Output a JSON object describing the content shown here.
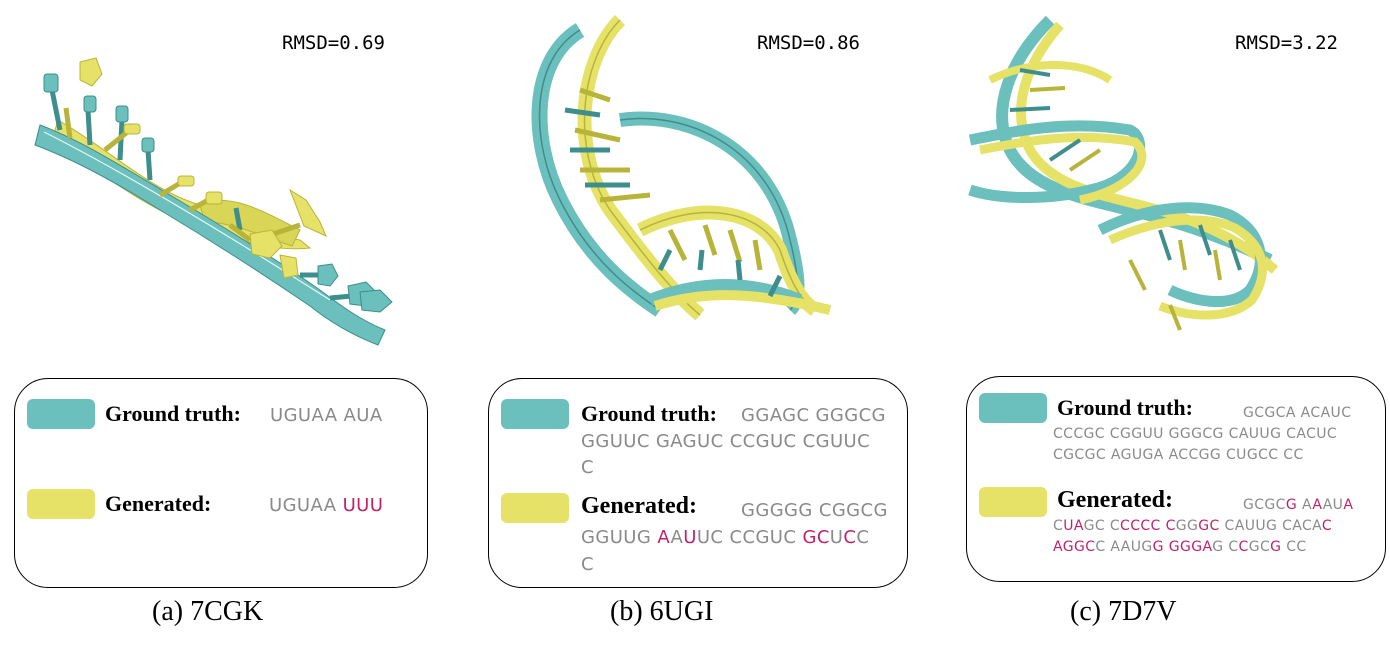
{
  "colors": {
    "ground_truth": "#6bbfbd",
    "generated": "#e5e267",
    "mutation": "#c1226a",
    "sequence": "#8a8a8a"
  },
  "panels": [
    {
      "rmsd": "RMSD=0.69",
      "caption": "(a) 7CGK",
      "gt_label": "Ground truth:",
      "gen_label": "Generated:",
      "gt_lines": [
        [
          {
            "t": "UGUAA AUA",
            "m": false
          }
        ]
      ],
      "gen_lines": [
        [
          {
            "t": "UGUAA ",
            "m": false
          },
          {
            "t": "UUU",
            "m": true
          }
        ]
      ]
    },
    {
      "rmsd": "RMSD=0.86",
      "caption": "(b) 6UGI",
      "gt_label": "Ground truth:",
      "gen_label": "Generated:",
      "gt_lines": [
        [
          {
            "t": "GGAGC GGGCG",
            "m": false
          }
        ],
        [
          {
            "t": "GGUUC GAGUC CCGUC CGUUC",
            "m": false
          }
        ],
        [
          {
            "t": "C",
            "m": false
          }
        ]
      ],
      "gen_lines": [
        [
          {
            "t": "GGGGG CGGCG",
            "m": false
          }
        ],
        [
          {
            "t": "GGUUG ",
            "m": false
          },
          {
            "t": "A",
            "m": true
          },
          {
            "t": "A",
            "m": false
          },
          {
            "t": "U",
            "m": true
          },
          {
            "t": "UC CCGUC ",
            "m": false
          },
          {
            "t": "GC",
            "m": true
          },
          {
            "t": "U",
            "m": false
          },
          {
            "t": "C",
            "m": true
          },
          {
            "t": "C",
            "m": false
          }
        ],
        [
          {
            "t": "C",
            "m": false
          }
        ]
      ]
    },
    {
      "rmsd": "RMSD=3.22",
      "caption": "(c) 7D7V",
      "gt_label": "Ground truth:",
      "gen_label": "Generated:",
      "gt_lines": [
        [
          {
            "t": "GCGCA ACAUC",
            "m": false
          }
        ],
        [
          {
            "t": "CCCGC CGGUU GGGCG CAUUG CACUC",
            "m": false
          }
        ],
        [
          {
            "t": "CGCGC AGUGA ACCGG CUGCC CC",
            "m": false
          }
        ]
      ],
      "gen_lines": [
        [
          {
            "t": "GCGC",
            "m": false
          },
          {
            "t": "G",
            "m": true
          },
          {
            "t": " A",
            "m": false
          },
          {
            "t": "A",
            "m": true
          },
          {
            "t": "AU",
            "m": false
          },
          {
            "t": "A",
            "m": true
          }
        ],
        [
          {
            "t": "C",
            "m": false
          },
          {
            "t": "UA",
            "m": true
          },
          {
            "t": "GC C",
            "m": false
          },
          {
            "t": "CCCC C",
            "m": true
          },
          {
            "t": "GG",
            "m": false
          },
          {
            "t": "GC",
            "m": true
          },
          {
            "t": " CAUUG CACA",
            "m": false
          },
          {
            "t": "C",
            "m": true
          }
        ],
        [
          {
            "t": "AGGC",
            "m": true
          },
          {
            "t": "C AAUG",
            "m": false
          },
          {
            "t": "G GGGA",
            "m": true
          },
          {
            "t": "G C",
            "m": false
          },
          {
            "t": "C",
            "m": true
          },
          {
            "t": "GC",
            "m": false
          },
          {
            "t": "G",
            "m": true
          },
          {
            "t": " CC",
            "m": false
          }
        ]
      ]
    }
  ]
}
